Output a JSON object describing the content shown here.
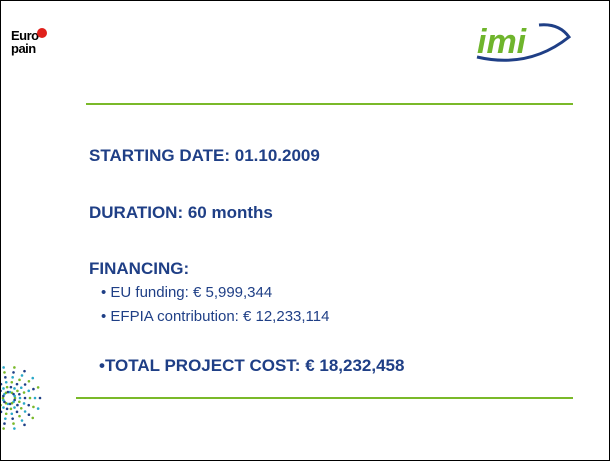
{
  "logos": {
    "left": {
      "line1": "Euro",
      "line2": "pain"
    },
    "right": "imi"
  },
  "body": {
    "starting_date": "STARTING DATE: 01.10.2009",
    "duration": "DURATION: 60 months",
    "financing": {
      "heading": "FINANCING:",
      "items": [
        "EU funding: € 5,999,344",
        "EFPIA contribution: € 12,233,114"
      ]
    },
    "total": "•TOTAL PROJECT COST: € 18,232,458"
  }
}
